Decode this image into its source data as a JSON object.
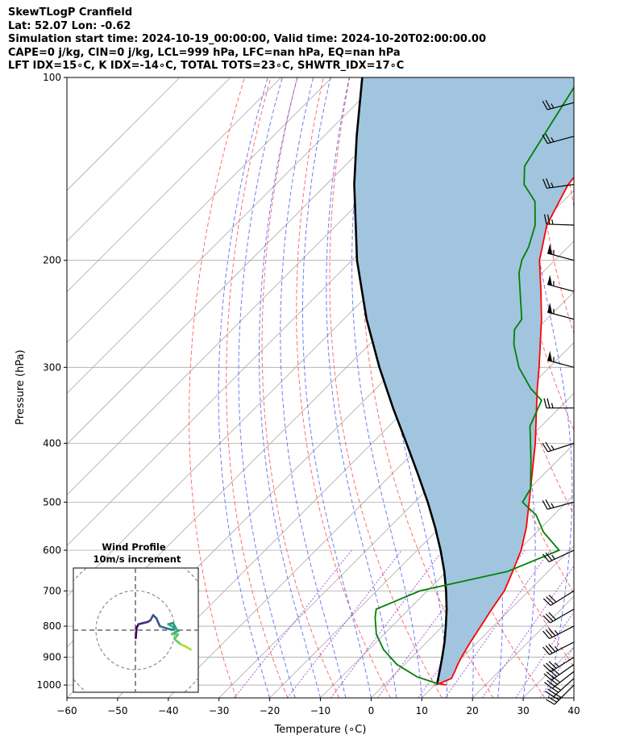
{
  "titles": {
    "line1": "SkewTLogP Cranfield",
    "line2": "Lat: 52.07   Lon: -0.62",
    "line3": "Simulation start time: 2024-10-19_00:00:00, Valid time: 2024-10-20T02:00:00.00",
    "line4": "CAPE=0 j/kg, CIN=0 j/kg, LCL=999 hPa, LFC=nan hPa, EQ=nan hPa",
    "line5": "LFT IDX=15∘C, K IDX=-14∘C, TOTAL TOTS=23∘C, SHWTR_IDX=17∘C"
  },
  "colors": {
    "temperature": "#ff0000",
    "dewpoint": "#008000",
    "parcel": "#000000",
    "fill": "#a1c5df",
    "dry_adiabats": "#ff5555",
    "moist_adiabats": "#4a5cf2",
    "mixing_ratio": "#9b3ed1",
    "isotherms": "#a9a9a9",
    "isobars": "#aaaaaa"
  },
  "chart_data": [
    {
      "type": "line",
      "subtype": "skew-t-log-p",
      "xlabel": "Temperature (∘C)",
      "ylabel": "Pressure (hPa)",
      "xlim": [
        -60,
        40
      ],
      "ylim": [
        1050,
        100
      ],
      "y_scale": "log",
      "grid": true,
      "x_ticks": [
        -60,
        -50,
        -40,
        -30,
        -20,
        -10,
        0,
        10,
        20,
        30,
        40
      ],
      "y_ticks": [
        1000,
        900,
        800,
        700,
        600,
        500,
        400,
        300,
        200,
        100
      ],
      "series": [
        {
          "role": "temperature",
          "points": [
            {
              "p": 1000,
              "t": 12.3
            },
            {
              "p": 995,
              "t": 10.6
            },
            {
              "p": 975,
              "t": 12.0
            },
            {
              "p": 950,
              "t": 11.3
            },
            {
              "p": 925,
              "t": 10.5
            },
            {
              "p": 900,
              "t": 9.8
            },
            {
              "p": 850,
              "t": 8.6
            },
            {
              "p": 800,
              "t": 7.5
            },
            {
              "p": 750,
              "t": 6.3
            },
            {
              "p": 700,
              "t": 5.2
            },
            {
              "p": 650,
              "t": 3.0
            },
            {
              "p": 600,
              "t": 0.5
            },
            {
              "p": 550,
              "t": -3.0
            },
            {
              "p": 500,
              "t": -7.4
            },
            {
              "p": 450,
              "t": -12.3
            },
            {
              "p": 400,
              "t": -17.8
            },
            {
              "p": 350,
              "t": -24.5
            },
            {
              "p": 325,
              "t": -28.2
            },
            {
              "p": 300,
              "t": -32.0
            },
            {
              "p": 250,
              "t": -41.0
            },
            {
              "p": 225,
              "t": -46.6
            },
            {
              "p": 200,
              "t": -53.0
            },
            {
              "p": 175,
              "t": -58.5
            },
            {
              "p": 150,
              "t": -62.3
            },
            {
              "p": 125,
              "t": -64.0
            },
            {
              "p": 110,
              "t": -63.8
            },
            {
              "p": 100,
              "t": -63.6
            }
          ]
        },
        {
          "role": "dewpoint",
          "points": [
            {
              "p": 995,
              "t": 10.4
            },
            {
              "p": 970,
              "t": 5.0
            },
            {
              "p": 925,
              "t": -1.5
            },
            {
              "p": 875,
              "t": -7.0
            },
            {
              "p": 825,
              "t": -11.5
            },
            {
              "p": 775,
              "t": -15.0
            },
            {
              "p": 750,
              "t": -16.5
            },
            {
              "p": 700,
              "t": -11.5
            },
            {
              "p": 650,
              "t": 2.0
            },
            {
              "p": 600,
              "t": 8.0
            },
            {
              "p": 560,
              "t": 1.3
            },
            {
              "p": 525,
              "t": -3.5
            },
            {
              "p": 500,
              "t": -8.7
            },
            {
              "p": 475,
              "t": -9.8
            },
            {
              "p": 425,
              "t": -15.5
            },
            {
              "p": 375,
              "t": -22.2
            },
            {
              "p": 340,
              "t": -25.0
            },
            {
              "p": 325,
              "t": -29.5
            },
            {
              "p": 300,
              "t": -36.0
            },
            {
              "p": 275,
              "t": -41.5
            },
            {
              "p": 260,
              "t": -44.3
            },
            {
              "p": 250,
              "t": -44.9
            },
            {
              "p": 210,
              "t": -54.5
            },
            {
              "p": 200,
              "t": -56.5
            },
            {
              "p": 190,
              "t": -57.8
            },
            {
              "p": 175,
              "t": -60.8
            },
            {
              "p": 160,
              "t": -65.5
            },
            {
              "p": 150,
              "t": -71.0
            },
            {
              "p": 140,
              "t": -74.5
            },
            {
              "p": 120,
              "t": -77.5
            },
            {
              "p": 100,
              "t": -81.0
            }
          ]
        },
        {
          "role": "parcel",
          "points": [
            {
              "p": 999,
              "t": 10.4
            },
            {
              "p": 950,
              "t": 8.3
            },
            {
              "p": 900,
              "t": 6.0
            },
            {
              "p": 850,
              "t": 3.5
            },
            {
              "p": 800,
              "t": 0.6
            },
            {
              "p": 750,
              "t": -2.6
            },
            {
              "p": 700,
              "t": -6.3
            },
            {
              "p": 650,
              "t": -10.5
            },
            {
              "p": 600,
              "t": -15.4
            },
            {
              "p": 550,
              "t": -21.0
            },
            {
              "p": 500,
              "t": -27.4
            },
            {
              "p": 450,
              "t": -34.8
            },
            {
              "p": 400,
              "t": -43.2
            },
            {
              "p": 350,
              "t": -52.8
            },
            {
              "p": 300,
              "t": -63.5
            },
            {
              "p": 250,
              "t": -75.5
            },
            {
              "p": 200,
              "t": -89.0
            },
            {
              "p": 150,
              "t": -104.5
            },
            {
              "p": 125,
              "t": -113.5
            },
            {
              "p": 100,
              "t": -124.0
            }
          ]
        }
      ],
      "wind_barbs": [
        {
          "p": 1000,
          "speed_kt": 40,
          "dir_deg": 225
        },
        {
          "p": 975,
          "speed_kt": 40,
          "dir_deg": 228
        },
        {
          "p": 950,
          "speed_kt": 40,
          "dir_deg": 232
        },
        {
          "p": 925,
          "speed_kt": 40,
          "dir_deg": 235
        },
        {
          "p": 900,
          "speed_kt": 35,
          "dir_deg": 238
        },
        {
          "p": 850,
          "speed_kt": 35,
          "dir_deg": 243
        },
        {
          "p": 800,
          "speed_kt": 35,
          "dir_deg": 243
        },
        {
          "p": 750,
          "speed_kt": 30,
          "dir_deg": 240
        },
        {
          "p": 700,
          "speed_kt": 30,
          "dir_deg": 238
        },
        {
          "p": 600,
          "speed_kt": 25,
          "dir_deg": 245
        },
        {
          "p": 500,
          "speed_kt": 25,
          "dir_deg": 255
        },
        {
          "p": 400,
          "speed_kt": 25,
          "dir_deg": 252
        },
        {
          "p": 350,
          "speed_kt": 25,
          "dir_deg": 270
        },
        {
          "p": 300,
          "speed_kt": 55,
          "dir_deg": 285
        },
        {
          "p": 250,
          "speed_kt": 55,
          "dir_deg": 285
        },
        {
          "p": 225,
          "speed_kt": 55,
          "dir_deg": 285
        },
        {
          "p": 200,
          "speed_kt": 55,
          "dir_deg": 285
        },
        {
          "p": 175,
          "speed_kt": 25,
          "dir_deg": 272
        },
        {
          "p": 150,
          "speed_kt": 25,
          "dir_deg": 262
        },
        {
          "p": 125,
          "speed_kt": 25,
          "dir_deg": 255
        },
        {
          "p": 110,
          "speed_kt": 25,
          "dir_deg": 255
        }
      ]
    },
    {
      "type": "line",
      "subtype": "hodograph",
      "title": "Wind Profile",
      "subtitle": "10m/s increment",
      "ring_increment_ms": 10,
      "grid": true,
      "points": [
        {
          "u": 0.1,
          "v": -2.0
        },
        {
          "u": 0.2,
          "v": -0.6
        },
        {
          "u": 0.3,
          "v": 0.6
        },
        {
          "u": 0.8,
          "v": 1.5
        },
        {
          "u": 2.0,
          "v": 1.8
        },
        {
          "u": 3.2,
          "v": 2.1
        },
        {
          "u": 3.8,
          "v": 2.5
        },
        {
          "u": 4.5,
          "v": 3.8
        },
        {
          "u": 5.3,
          "v": 3.0
        },
        {
          "u": 6.2,
          "v": 1.0
        },
        {
          "u": 8.0,
          "v": 0.4
        },
        {
          "u": 9.3,
          "v": 0.1
        },
        {
          "u": 10.2,
          "v": 0.6
        },
        {
          "u": 9.5,
          "v": 1.8
        },
        {
          "u": 8.3,
          "v": 1.5
        },
        {
          "u": 10.3,
          "v": 0.3
        },
        {
          "u": 10.9,
          "v": -0.2
        },
        {
          "u": 9.2,
          "v": -1.0
        },
        {
          "u": 10.8,
          "v": -1.1
        },
        {
          "u": 9.9,
          "v": -2.3
        },
        {
          "u": 11.5,
          "v": -3.6
        },
        {
          "u": 12.8,
          "v": -4.2
        },
        {
          "u": 14.0,
          "v": -4.9
        }
      ]
    }
  ]
}
